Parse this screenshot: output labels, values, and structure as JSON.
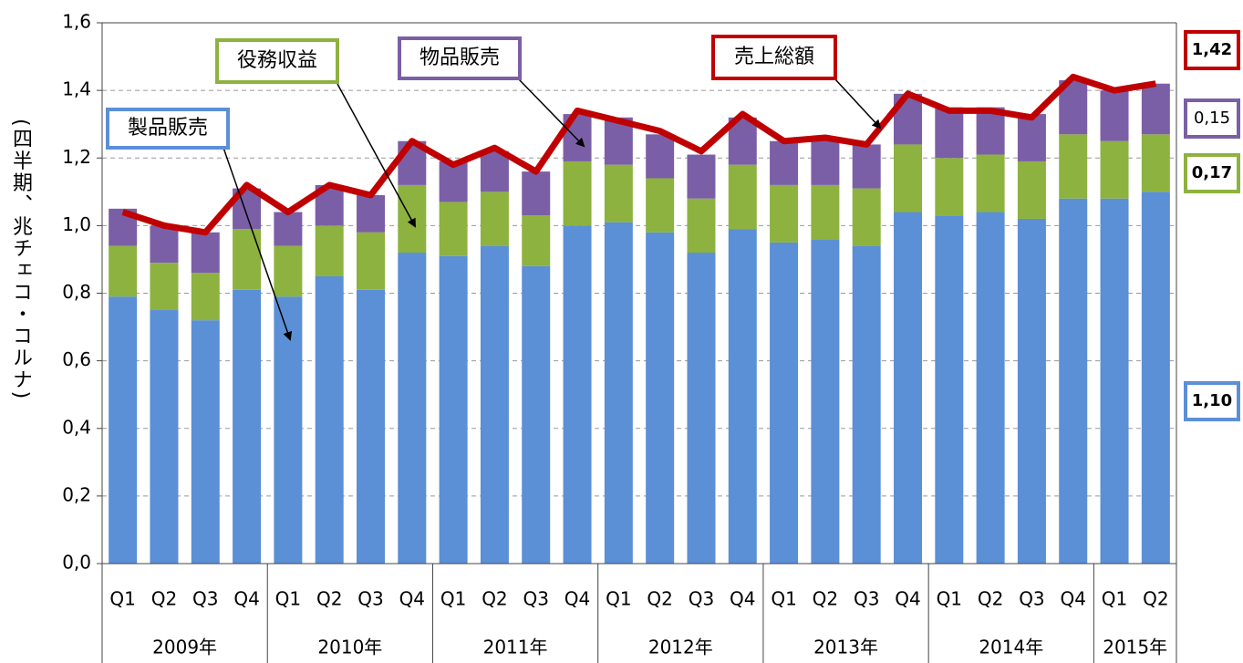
{
  "chart_data": {
    "type": "bar",
    "y_label": "(四半期、兆チェコ・コルナ)",
    "categories": [
      "Q1",
      "Q2",
      "Q3",
      "Q4",
      "Q1",
      "Q2",
      "Q3",
      "Q4",
      "Q1",
      "Q2",
      "Q3",
      "Q4",
      "Q1",
      "Q2",
      "Q3",
      "Q4",
      "Q1",
      "Q2",
      "Q3",
      "Q4",
      "Q1",
      "Q2",
      "Q3",
      "Q4",
      "Q1",
      "Q2"
    ],
    "groups": [
      {
        "label": "2009年",
        "span": 4
      },
      {
        "label": "2010年",
        "span": 4
      },
      {
        "label": "2011年",
        "span": 4
      },
      {
        "label": "2012年",
        "span": 4
      },
      {
        "label": "2013年",
        "span": 4
      },
      {
        "label": "2014年",
        "span": 4
      },
      {
        "label": "2015年",
        "span": 2
      }
    ],
    "ylim": [
      0,
      1.6
    ],
    "yticks": [
      {
        "value": 0,
        "label": "0,0"
      },
      {
        "value": 0.2,
        "label": "0,2"
      },
      {
        "value": 0.4,
        "label": "0,4"
      },
      {
        "value": 0.6,
        "label": "0,6"
      },
      {
        "value": 0.8,
        "label": "0,8"
      },
      {
        "value": 1.0,
        "label": "1,0"
      },
      {
        "value": 1.2,
        "label": "1,2"
      },
      {
        "value": 1.4,
        "label": "1,4"
      },
      {
        "value": 1.6,
        "label": "1,6"
      }
    ],
    "grid": true,
    "series": [
      {
        "name": "製品販売",
        "type": "bar",
        "color": "#5b8fd6",
        "values": [
          0.79,
          0.75,
          0.72,
          0.81,
          0.79,
          0.85,
          0.81,
          0.92,
          0.91,
          0.94,
          0.88,
          1.0,
          1.01,
          0.98,
          0.92,
          0.99,
          0.95,
          0.96,
          0.94,
          1.04,
          1.03,
          1.04,
          1.02,
          1.08,
          1.08,
          1.1
        ],
        "value_labels": [
          null,
          null,
          null,
          null,
          null,
          null,
          null,
          null,
          null,
          null,
          null,
          null,
          null,
          null,
          null,
          null,
          null,
          null,
          null,
          null,
          null,
          null,
          null,
          null,
          null,
          "1,10"
        ]
      },
      {
        "name": "役務収益",
        "type": "bar",
        "color": "#8db23f",
        "values": [
          0.15,
          0.14,
          0.14,
          0.18,
          0.15,
          0.15,
          0.17,
          0.2,
          0.16,
          0.16,
          0.15,
          0.19,
          0.17,
          0.16,
          0.16,
          0.19,
          0.17,
          0.16,
          0.17,
          0.2,
          0.17,
          0.17,
          0.17,
          0.19,
          0.17,
          0.17
        ],
        "value_labels": [
          null,
          null,
          null,
          null,
          null,
          null,
          null,
          null,
          null,
          null,
          null,
          null,
          null,
          null,
          null,
          null,
          null,
          null,
          null,
          null,
          null,
          null,
          null,
          null,
          null,
          "0,17"
        ]
      },
      {
        "name": "物品販売",
        "type": "bar",
        "color": "#7b5fa6",
        "values": [
          0.11,
          0.11,
          0.12,
          0.12,
          0.1,
          0.12,
          0.11,
          0.13,
          0.12,
          0.12,
          0.13,
          0.14,
          0.14,
          0.13,
          0.13,
          0.14,
          0.13,
          0.14,
          0.13,
          0.15,
          0.15,
          0.14,
          0.14,
          0.16,
          0.15,
          0.15
        ],
        "value_labels": [
          null,
          null,
          null,
          null,
          null,
          null,
          null,
          null,
          null,
          null,
          null,
          null,
          null,
          null,
          null,
          null,
          null,
          null,
          null,
          null,
          null,
          null,
          null,
          null,
          null,
          "0,15"
        ]
      },
      {
        "name": "売上総額",
        "type": "line",
        "color": "#c00000",
        "values": [
          1.04,
          1.0,
          0.98,
          1.12,
          1.04,
          1.12,
          1.09,
          1.25,
          1.18,
          1.23,
          1.16,
          1.34,
          1.31,
          1.28,
          1.22,
          1.33,
          1.25,
          1.26,
          1.24,
          1.39,
          1.34,
          1.34,
          1.32,
          1.44,
          1.4,
          1.42
        ],
        "value_labels": [
          null,
          null,
          null,
          null,
          null,
          null,
          null,
          null,
          null,
          null,
          null,
          null,
          null,
          null,
          null,
          null,
          null,
          null,
          null,
          null,
          null,
          null,
          null,
          null,
          null,
          "1,42"
        ]
      }
    ]
  }
}
